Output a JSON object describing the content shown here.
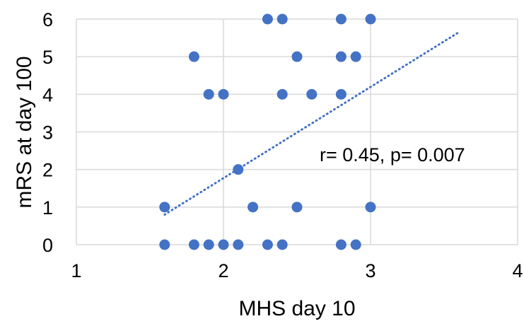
{
  "chart_data": {
    "type": "scatter",
    "title": "",
    "xlabel": "MHS day 10",
    "ylabel": "mRS at day 100",
    "xlim": [
      1,
      4
    ],
    "ylim": [
      0,
      6
    ],
    "x_ticks": [
      "1",
      "2",
      "3",
      "4"
    ],
    "y_ticks": [
      "0",
      "1",
      "2",
      "3",
      "4",
      "5",
      "6"
    ],
    "grid": true,
    "legend": "none",
    "annotation": "r= 0.45, p= 0.007",
    "colors": {
      "points": "#4472C4",
      "trendline": "#4472C4",
      "grid": "#D9D9D9"
    },
    "trendline": {
      "type": "linear",
      "style": "dotted",
      "x_range": [
        1.6,
        3.6
      ],
      "y_values": [
        0.8,
        5.65
      ]
    },
    "points": [
      {
        "x": 1.6,
        "y": 0
      },
      {
        "x": 1.8,
        "y": 0
      },
      {
        "x": 1.9,
        "y": 0
      },
      {
        "x": 2.0,
        "y": 0
      },
      {
        "x": 2.1,
        "y": 0
      },
      {
        "x": 2.3,
        "y": 0
      },
      {
        "x": 2.4,
        "y": 0
      },
      {
        "x": 2.8,
        "y": 0
      },
      {
        "x": 2.9,
        "y": 0
      },
      {
        "x": 1.6,
        "y": 1
      },
      {
        "x": 2.2,
        "y": 1
      },
      {
        "x": 2.5,
        "y": 1
      },
      {
        "x": 3.0,
        "y": 1
      },
      {
        "x": 2.1,
        "y": 2
      },
      {
        "x": 1.9,
        "y": 4
      },
      {
        "x": 2.0,
        "y": 4
      },
      {
        "x": 2.4,
        "y": 4
      },
      {
        "x": 2.6,
        "y": 4
      },
      {
        "x": 2.8,
        "y": 4
      },
      {
        "x": 1.8,
        "y": 5
      },
      {
        "x": 2.5,
        "y": 5
      },
      {
        "x": 2.8,
        "y": 5
      },
      {
        "x": 2.9,
        "y": 5
      },
      {
        "x": 2.3,
        "y": 6
      },
      {
        "x": 2.4,
        "y": 6
      },
      {
        "x": 2.8,
        "y": 6
      },
      {
        "x": 3.0,
        "y": 6
      }
    ]
  }
}
